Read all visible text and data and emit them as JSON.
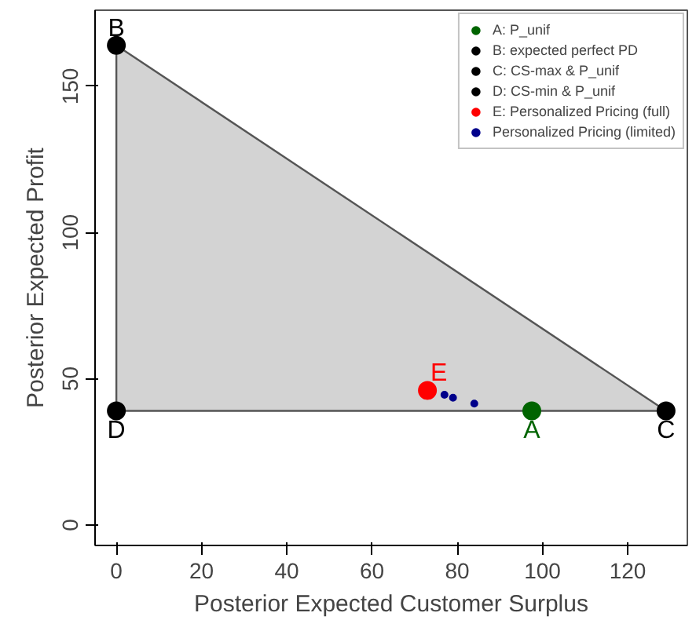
{
  "chart_data": {
    "type": "scatter",
    "xlabel": "Posterior Expected Customer Surplus",
    "ylabel": "Posterior Expected Profit",
    "xlim": [
      -5,
      134
    ],
    "ylim": [
      -7,
      176
    ],
    "xticks": [
      0,
      20,
      40,
      60,
      80,
      100,
      120
    ],
    "yticks": [
      0,
      50,
      100,
      150
    ],
    "grid": false,
    "legend": "top right",
    "series": [
      {
        "type": "area",
        "color": "#d3d3d3",
        "x": [
          0,
          129
        ],
        "values": [
          164,
          39
        ]
      },
      {
        "type": "line",
        "color": "#555555",
        "x": [
          0,
          129
        ],
        "values": [
          39,
          39
        ]
      },
      {
        "name": "A: P_unif",
        "color": "#006400",
        "x": [
          97.5
        ],
        "values": [
          39
        ]
      },
      {
        "name": "B: expected perfect PD",
        "color": "#000000",
        "x": [
          0
        ],
        "values": [
          164
        ]
      },
      {
        "name": "C: CS-max & P_unif",
        "color": "#000000",
        "x": [
          129
        ],
        "values": [
          39
        ]
      },
      {
        "name": "D: CS-min & P_unif",
        "color": "#000000",
        "x": [
          0
        ],
        "values": [
          39
        ]
      },
      {
        "name": "E: Personalized Pricing (full)",
        "color": "#ff0000",
        "x": [
          73
        ],
        "values": [
          46
        ]
      },
      {
        "name": "Personalized Pricing (limited)",
        "color": "#00008b",
        "x": [
          77,
          79,
          84
        ],
        "values": [
          44.5,
          43.5,
          41.5
        ]
      }
    ],
    "annotations": [
      {
        "text": "A",
        "x": 97.5,
        "y": 39
      },
      {
        "text": "B",
        "x": 0,
        "y": 164
      },
      {
        "text": "C",
        "x": 129,
        "y": 39
      },
      {
        "text": "D",
        "x": 0,
        "y": 39
      },
      {
        "text": "E",
        "x": 73,
        "y": 46
      }
    ]
  }
}
